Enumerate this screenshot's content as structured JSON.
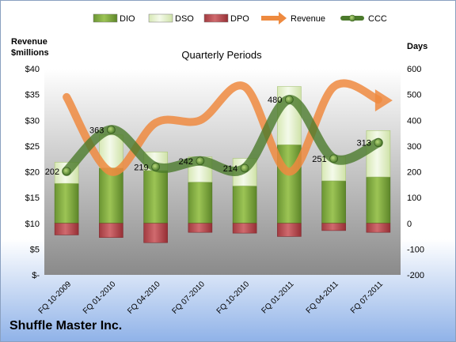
{
  "company": "Shuffle Master Inc.",
  "colors": {
    "DIO": "#7aa33b",
    "DSO": "#e6f2cc",
    "DPO": "#b8454a",
    "Revenue": "#ee8a3f",
    "CCC": "#4b7a2c"
  },
  "chart_data": {
    "type": "bar",
    "title": "Quarterly Periods",
    "categories": [
      "FQ 10-2009",
      "FQ 01-2010",
      "FQ 04-2010",
      "FQ 07-2010",
      "FQ 10-2010",
      "FQ 01-2011",
      "FQ 04-2011",
      "FQ 07-2011"
    ],
    "left_axis": {
      "label": [
        "Revenue",
        "$millions"
      ],
      "min": 0,
      "max": 40,
      "step": 5,
      "tick_labels": [
        "$-",
        "$5",
        "$10",
        "$15",
        "$20",
        "$25",
        "$30",
        "$35",
        "$40"
      ]
    },
    "right_axis": {
      "label": "Days",
      "min": -200,
      "max": 600,
      "step": 100,
      "tick_labels": [
        "-200",
        "-100",
        "0",
        "100",
        "200",
        "300",
        "400",
        "500",
        "600"
      ]
    },
    "legend": {
      "placement": "top",
      "entries": [
        "DIO",
        "DSO",
        "DPO",
        "Revenue",
        "CCC"
      ]
    },
    "series": [
      {
        "name": "DIO",
        "axis": "right",
        "kind": "stacked-bar",
        "values": [
          155,
          215,
          205,
          160,
          145,
          305,
          165,
          180
        ]
      },
      {
        "name": "DSO",
        "axis": "right",
        "kind": "stacked-bar",
        "values": [
          82,
          128,
          72,
          98,
          107,
          226,
          94,
          180
        ]
      },
      {
        "name": "DPO",
        "axis": "right",
        "kind": "stacked-bar",
        "values": [
          -45,
          -55,
          -75,
          -35,
          -38,
          -51,
          -28,
          -35
        ]
      },
      {
        "name": "Revenue",
        "axis": "left",
        "kind": "smooth-line",
        "values": [
          34.5,
          20.0,
          29.5,
          30.0,
          36.5,
          20.0,
          36.5,
          34.0
        ]
      },
      {
        "name": "CCC",
        "axis": "right",
        "kind": "smooth-line-markers",
        "values": [
          202,
          363,
          219,
          242,
          214,
          480,
          251,
          313
        ]
      }
    ],
    "data_labels": [
      "202",
      "363",
      "219",
      "242",
      "214",
      "480",
      "251",
      "313"
    ],
    "grid": false
  }
}
